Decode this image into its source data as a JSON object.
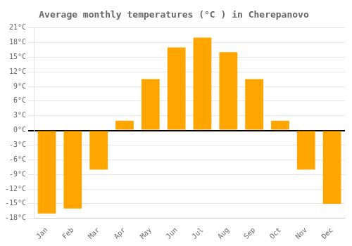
{
  "chart_data": {
    "type": "bar",
    "title": "Average monthly temperatures (°C ) in Cherepanovo",
    "categories": [
      "Jan",
      "Feb",
      "Mar",
      "Apr",
      "May",
      "Jun",
      "Jul",
      "Aug",
      "Sep",
      "Oct",
      "Nov",
      "Dec"
    ],
    "values": [
      -17,
      -16,
      -8,
      2,
      10.5,
      17,
      19,
      16,
      10.5,
      2,
      -8,
      -15
    ],
    "color": "#FFA500",
    "ylim": [
      -18,
      21
    ],
    "yticks": [
      {
        "value": -18,
        "label": "-18°C"
      },
      {
        "value": -15,
        "label": "-15°C"
      },
      {
        "value": -12,
        "label": "-12°C"
      },
      {
        "value": -9,
        "label": "-9°C"
      },
      {
        "value": -6,
        "label": "-6°C"
      },
      {
        "value": -3,
        "label": "-3°C"
      },
      {
        "value": 0,
        "label": "0°C"
      },
      {
        "value": 3,
        "label": "3°C"
      },
      {
        "value": 6,
        "label": "6°C"
      },
      {
        "value": 9,
        "label": "9°C"
      },
      {
        "value": 12,
        "label": "12°C"
      },
      {
        "value": 15,
        "label": "15°C"
      },
      {
        "value": 18,
        "label": "18°C"
      },
      {
        "value": 21,
        "label": "21°C"
      }
    ],
    "grid": true
  }
}
